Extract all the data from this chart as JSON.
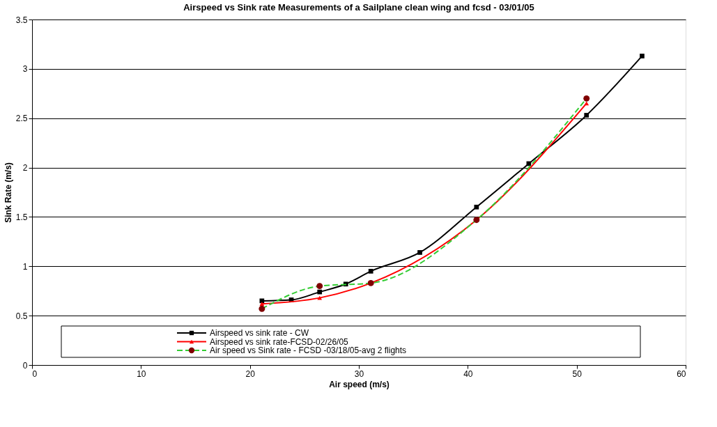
{
  "chart_data": {
    "type": "line",
    "title": "Airspeed vs Sink rate Measurements of a Sailplane clean wing and fcsd - 03/01/05",
    "xlabel": "Air speed (m/s)",
    "ylabel": "Sink Rate (m/s)",
    "xlim": [
      0,
      60
    ],
    "xticks": [
      0,
      10,
      20,
      30,
      40,
      50,
      60
    ],
    "ylim": [
      0,
      3.5
    ],
    "yticks": [
      0,
      0.5,
      1,
      1.5,
      2,
      2.5,
      3,
      3.5
    ],
    "grid": "y",
    "legend": "bottom",
    "series": [
      {
        "name": "Airspeed vs sink rate - CW",
        "color": "#000000",
        "marker": "square",
        "line_style": "solid",
        "x": [
          21.1,
          23.8,
          26.4,
          28.8,
          31.1,
          35.6,
          40.8,
          45.6,
          50.9,
          56.0
        ],
        "values": [
          0.65,
          0.66,
          0.74,
          0.82,
          0.95,
          1.14,
          1.6,
          2.04,
          2.53,
          3.13
        ]
      },
      {
        "name": "Airspeed vs sink rate-FCSD-02/26/05",
        "color": "#ff0000",
        "marker": "triangle",
        "line_style": "solid",
        "x": [
          21.1,
          26.4,
          31.1,
          40.8,
          50.9
        ],
        "values": [
          0.62,
          0.68,
          0.83,
          1.47,
          2.65
        ]
      },
      {
        "name": "Air speed vs Sink rate - FCSD -03/18/05-avg 2 flights",
        "color": "#33cc33",
        "marker": "circle",
        "line_style": "dashed",
        "x": [
          21.1,
          26.4,
          31.1,
          40.8,
          50.9
        ],
        "values": [
          0.57,
          0.8,
          0.83,
          1.47,
          2.7
        ]
      }
    ]
  }
}
